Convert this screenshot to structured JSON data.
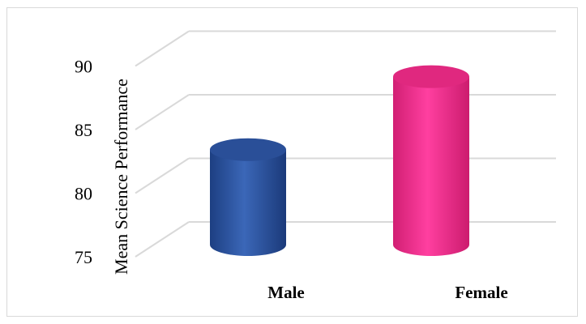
{
  "chart_data": {
    "type": "bar",
    "style": "3d-cylinder",
    "categories": [
      "Male",
      "Female"
    ],
    "values": [
      83.2,
      89.5
    ],
    "colors": [
      "#2f58a6",
      "#f0328c"
    ],
    "ylabel": "Mean Science Performance",
    "ylim": [
      75,
      90
    ],
    "yticks": [
      "75",
      "80",
      "85",
      "90"
    ],
    "grid": true
  }
}
